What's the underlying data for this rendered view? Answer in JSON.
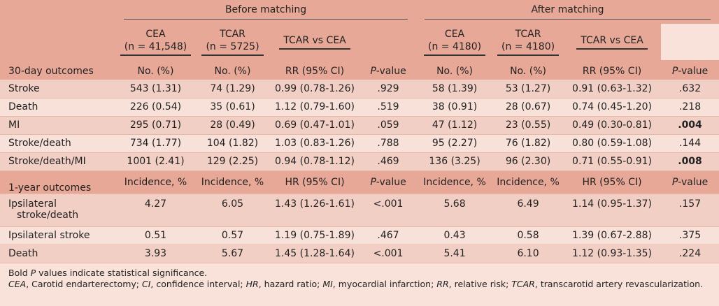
{
  "header": {
    "groups": [
      "Before matching",
      "After matching"
    ],
    "col_heads": [
      [
        "CEA",
        "(n = 41,548)"
      ],
      [
        "TCAR",
        "(n = 5725)"
      ],
      [
        "TCAR vs CEA"
      ],
      [
        "CEA",
        "(n = 4180)"
      ],
      [
        "TCAR",
        "(n = 4180)"
      ],
      [
        "TCAR vs CEA"
      ]
    ]
  },
  "thirty_day": {
    "label": "30-day outcomes",
    "units": [
      "No. (%)",
      "No. (%)",
      "RR (95% CI)",
      "P-value",
      "No. (%)",
      "No. (%)",
      "RR (95% CI)",
      "P-value"
    ],
    "rows": [
      [
        "Stroke",
        "543 (1.31)",
        "74 (1.29)",
        "0.99 (0.78-1.26)",
        ".929",
        "58 (1.39)",
        "53 (1.27)",
        "0.91 (0.63-1.32)",
        ".632"
      ],
      [
        "Death",
        "226 (0.54)",
        "35 (0.61)",
        "1.12 (0.79-1.60)",
        ".519",
        "38 (0.91)",
        "28 (0.67)",
        "0.74 (0.45-1.20)",
        ".218"
      ],
      [
        "MI",
        "295 (0.71)",
        "28 (0.49)",
        "0.69 (0.47-1.01)",
        ".059",
        "47 (1.12)",
        "23 (0.55)",
        "0.49 (0.30-0.81)",
        ".004"
      ],
      [
        "Stroke/death",
        "734 (1.77)",
        "104 (1.82)",
        "1.03 (0.83-1.26)",
        ".788",
        "95 (2.27)",
        "76 (1.82)",
        "0.80 (0.59-1.08)",
        ".144"
      ],
      [
        "Stroke/death/MI",
        "1001 (2.41)",
        "129 (2.25)",
        "0.94 (0.78-1.12)",
        ".469",
        "136 (3.25)",
        "96 (2.30)",
        "0.71 (0.55-0.91)",
        ".008"
      ]
    ],
    "bold": [
      [
        2,
        8
      ],
      [
        4,
        8
      ]
    ]
  },
  "one_year": {
    "label": "1-year outcomes",
    "units": [
      "Incidence, %",
      "Incidence, %",
      "HR (95% CI)",
      "P-value",
      "Incidence, %",
      "Incidence, %",
      "HR (95% CI)",
      "P-value"
    ],
    "rows": [
      [
        "Ipsilateral stroke/death",
        "4.27",
        "6.05",
        "1.43 (1.26-1.61)",
        "<.001",
        "5.68",
        "6.49",
        "1.14 (0.95-1.37)",
        ".157"
      ],
      [
        "Ipsilateral stroke",
        "0.51",
        "0.57",
        "1.19 (0.75-1.89)",
        ".467",
        "0.43",
        "0.58",
        "1.39 (0.67-2.88)",
        ".375"
      ],
      [
        "Death",
        "3.93",
        "5.67",
        "1.45 (1.28-1.64)",
        "<.001",
        "5.41",
        "6.10",
        "1.12 (0.93-1.35)",
        ".224"
      ]
    ]
  },
  "footnotes": [
    [
      {
        "t": "Bold "
      },
      {
        "t": "P",
        "i": true
      },
      {
        "t": " values indicate statistical significance."
      }
    ],
    [
      {
        "t": "CEA",
        "i": true
      },
      {
        "t": ", Carotid endarterectomy; "
      },
      {
        "t": "CI",
        "i": true
      },
      {
        "t": ", confidence interval; "
      },
      {
        "t": "HR",
        "i": true
      },
      {
        "t": ", hazard ratio; "
      },
      {
        "t": "MI",
        "i": true
      },
      {
        "t": ", myocardial infarction; "
      },
      {
        "t": "RR",
        "i": true
      },
      {
        "t": ", relative risk; "
      },
      {
        "t": "TCAR",
        "i": true
      },
      {
        "t": ", transcarotid artery revascularization."
      }
    ]
  ]
}
